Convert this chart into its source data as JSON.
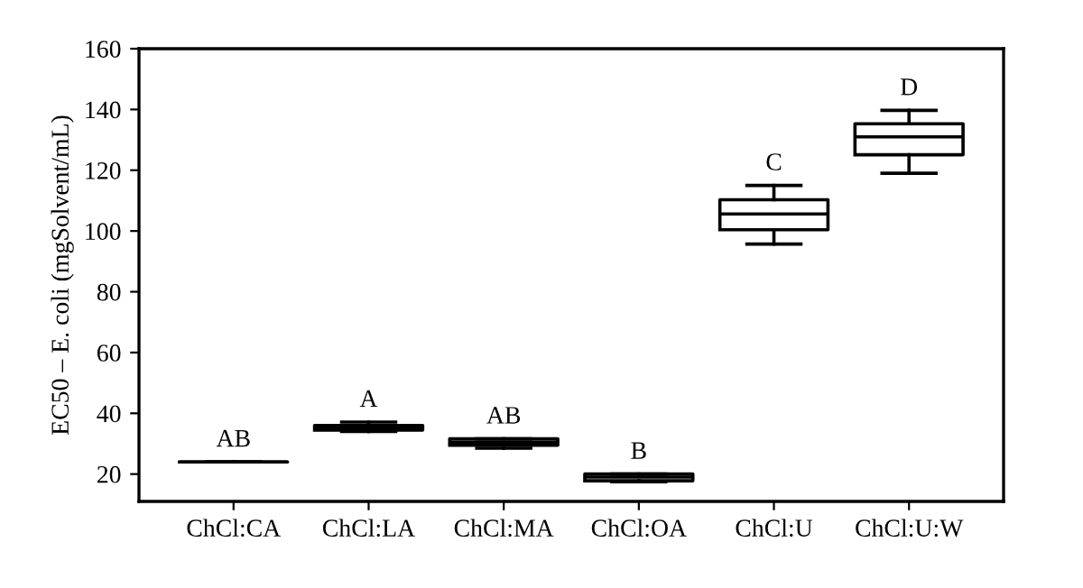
{
  "chart_data": {
    "type": "box",
    "ylabel": "EC50 – E. coli (mgSolvent/mL)",
    "categories": [
      "ChCl:CA",
      "ChCl:LA",
      "ChCl:MA",
      "ChCl:OA",
      "ChCl:U",
      "ChCl:U:W"
    ],
    "boxes": [
      {
        "low": 24,
        "q1": 24,
        "median": 24,
        "q3": 24,
        "high": 24
      },
      {
        "low": 34,
        "q1": 34.5,
        "median": 35.3,
        "q3": 36,
        "high": 37.1
      },
      {
        "low": 28.5,
        "q1": 29.5,
        "median": 30.5,
        "q3": 31.6,
        "high": 31.6
      },
      {
        "low": 17.5,
        "q1": 17.8,
        "median": 19,
        "q3": 20,
        "high": 20
      },
      {
        "low": 95.7,
        "q1": 100.4,
        "median": 105.6,
        "q3": 110.3,
        "high": 115
      },
      {
        "low": 119,
        "q1": 125.1,
        "median": 131,
        "q3": 135.3,
        "high": 139.7
      }
    ],
    "color": "#000000",
    "ylim": [
      11,
      160
    ],
    "yticks": [
      20,
      40,
      60,
      80,
      100,
      120,
      140,
      160
    ],
    "grid": false,
    "annotations": [
      "AB",
      "A",
      "AB",
      "B",
      "C",
      "D"
    ]
  }
}
